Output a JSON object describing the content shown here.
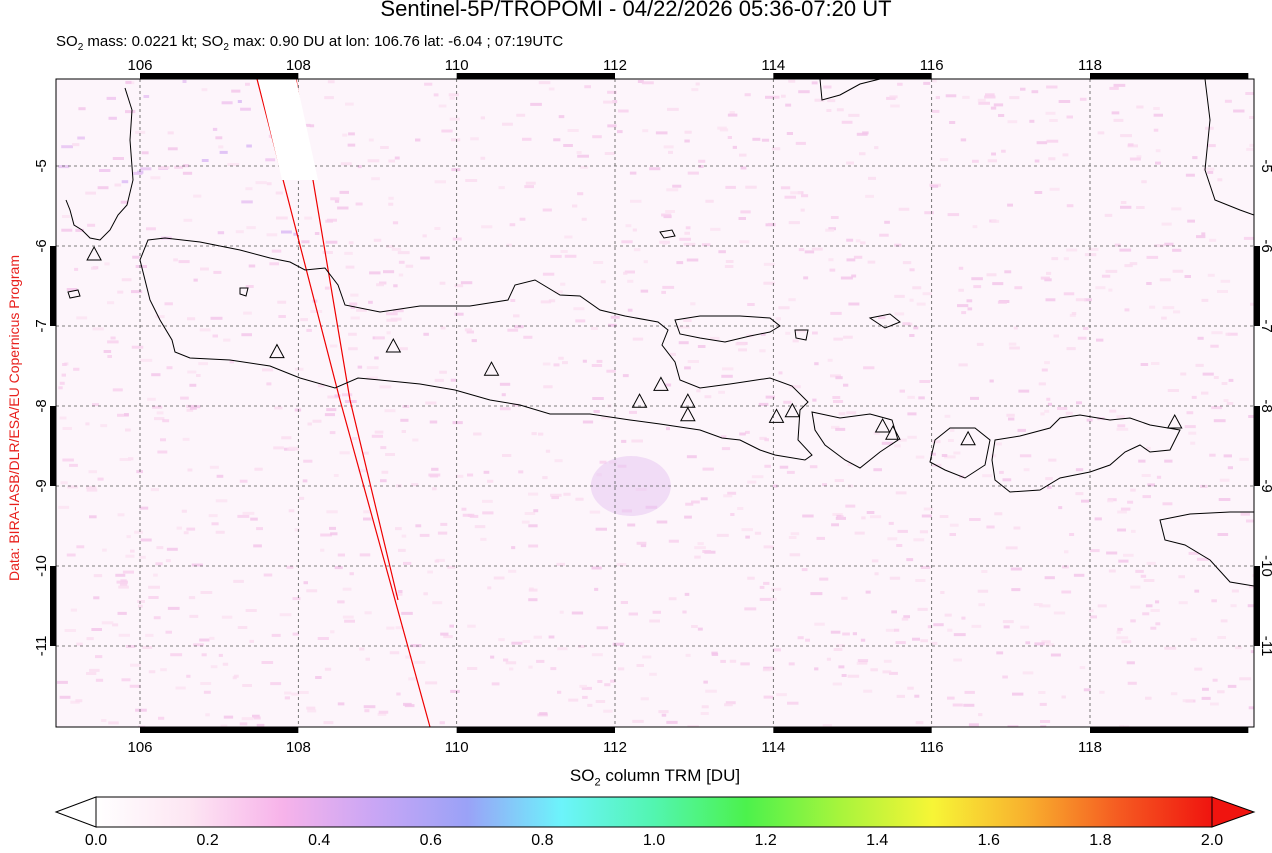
{
  "title": "Sentinel-5P/TROPOMI - 04/22/2026 05:36-07:20 UT",
  "subtitle": {
    "prefix": "SO",
    "sub1": "2",
    "mid1": " mass: 0.0221 kt; SO",
    "sub2": "2",
    "rest": " max: 0.90 DU at lon: 106.76 lat: -6.04 ; 07:19UTC"
  },
  "credit": "Data: BIRA-IASB/DLR/ESA/EU Copernicus Program",
  "map": {
    "lon_ticks": [
      "106",
      "108",
      "110",
      "112",
      "114",
      "116",
      "118"
    ],
    "lat_ticks": [
      "-5",
      "-6",
      "-7",
      "-8",
      "-9",
      "-10",
      "-11"
    ],
    "lon_range": [
      105.0,
      120.0
    ],
    "lat_range": [
      -12.0,
      -4.0
    ],
    "volcano_count": 15
  },
  "colorbar": {
    "label_prefix": "SO",
    "label_sub": "2",
    "label_rest": " column TRM [DU]",
    "ticks": [
      "0.0",
      "0.2",
      "0.4",
      "0.6",
      "0.8",
      "1.0",
      "1.2",
      "1.4",
      "1.6",
      "1.8",
      "2.0"
    ],
    "colors": [
      "#ffffff",
      "#fde6f3",
      "#f7b3ea",
      "#c9a6f5",
      "#9aa2f7",
      "#6cf4fb",
      "#52f5b0",
      "#4cf24c",
      "#a8f43c",
      "#f7f536",
      "#f8b12e",
      "#f55a21",
      "#f0140f"
    ]
  }
}
